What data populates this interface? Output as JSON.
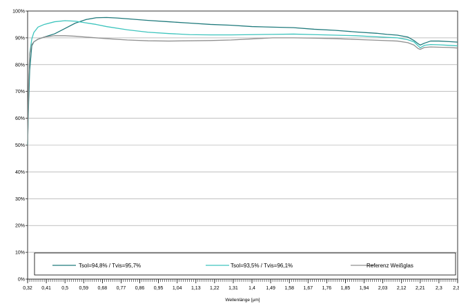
{
  "chart_data": {
    "type": "line",
    "title": "",
    "xlabel": "Wellenlänge [µm]",
    "ylabel": "",
    "xlim": [
      0.32,
      2.39
    ],
    "ylim": [
      0,
      100
    ],
    "x_tick_labels": [
      "0,32",
      "0,41",
      "0,5",
      "0,59",
      "0,68",
      "0,77",
      "0,86",
      "0,95",
      "1,04",
      "1,13",
      "1,22",
      "1,31",
      "1,4",
      "1,49",
      "1,58",
      "1,67",
      "1,76",
      "1,85",
      "1,94",
      "2,03",
      "2,12",
      "2,21",
      "2,3",
      "2,39"
    ],
    "y_tick_labels": [
      "0%",
      "10%",
      "20%",
      "30%",
      "40%",
      "50%",
      "60%",
      "70%",
      "80%",
      "90%",
      "100%"
    ],
    "grid": "horizontal",
    "legend_position": "bottom",
    "series": [
      {
        "name": "Tsol=94,8% / Tvis=95,7%",
        "color": "#1f7a7c",
        "x": [
          0.32,
          0.325,
          0.33,
          0.34,
          0.35,
          0.37,
          0.4,
          0.45,
          0.5,
          0.55,
          0.6,
          0.65,
          0.7,
          0.75,
          0.8,
          0.9,
          1.0,
          1.1,
          1.2,
          1.3,
          1.4,
          1.5,
          1.6,
          1.7,
          1.8,
          1.9,
          2.0,
          2.05,
          2.1,
          2.15,
          2.18,
          2.2,
          2.21,
          2.23,
          2.26,
          2.3,
          2.35,
          2.39
        ],
        "y": [
          50,
          66,
          78,
          87,
          88.5,
          89.5,
          90.3,
          91.5,
          93.5,
          95.5,
          96.8,
          97.5,
          97.6,
          97.4,
          97.1,
          96.5,
          96,
          95.5,
          95,
          94.7,
          94.2,
          94,
          93.8,
          93.2,
          92.8,
          92.2,
          91.7,
          91.3,
          91,
          90.3,
          89,
          87.8,
          87.3,
          88,
          88.8,
          88.8,
          88.6,
          88.4
        ]
      },
      {
        "name": "Tsol=93,5% / Tvis=96,1%",
        "color": "#3cc4bd",
        "x": [
          0.32,
          0.325,
          0.33,
          0.34,
          0.35,
          0.37,
          0.4,
          0.45,
          0.5,
          0.55,
          0.6,
          0.65,
          0.7,
          0.8,
          0.9,
          1.0,
          1.1,
          1.2,
          1.3,
          1.4,
          1.5,
          1.6,
          1.7,
          1.8,
          1.9,
          2.0,
          2.05,
          2.1,
          2.15,
          2.18,
          2.2,
          2.21,
          2.23,
          2.26,
          2.3,
          2.35,
          2.39
        ],
        "y": [
          50,
          72,
          84,
          89.5,
          92,
          94,
          95,
          96,
          96.4,
          96.2,
          95.6,
          95,
          94.2,
          93,
          92.1,
          91.6,
          91.2,
          91.1,
          91.1,
          91.2,
          91.3,
          91.4,
          91.2,
          91,
          90.8,
          90.4,
          90.2,
          90,
          89.3,
          88.5,
          87,
          86.3,
          87.2,
          87.5,
          87.4,
          87.2,
          87
        ]
      },
      {
        "name": "Referenz Weißglas",
        "color": "#8f8f8f",
        "x": [
          0.32,
          0.325,
          0.33,
          0.34,
          0.35,
          0.37,
          0.4,
          0.45,
          0.5,
          0.55,
          0.6,
          0.7,
          0.8,
          0.9,
          1.0,
          1.1,
          1.2,
          1.3,
          1.4,
          1.5,
          1.6,
          1.7,
          1.8,
          1.9,
          2.0,
          2.1,
          2.15,
          2.18,
          2.2,
          2.21,
          2.23,
          2.26,
          2.3,
          2.35,
          2.39
        ],
        "y": [
          50,
          74,
          84,
          87.5,
          88.5,
          89.5,
          90.3,
          90.8,
          90.8,
          90.6,
          90.3,
          89.7,
          89.2,
          88.9,
          88.8,
          88.9,
          89,
          89.2,
          89.6,
          90,
          90,
          89.9,
          89.7,
          89.4,
          89.1,
          88.8,
          88.2,
          87.3,
          86,
          85.7,
          86.4,
          86.6,
          86.5,
          86.4,
          86.2
        ]
      }
    ]
  }
}
